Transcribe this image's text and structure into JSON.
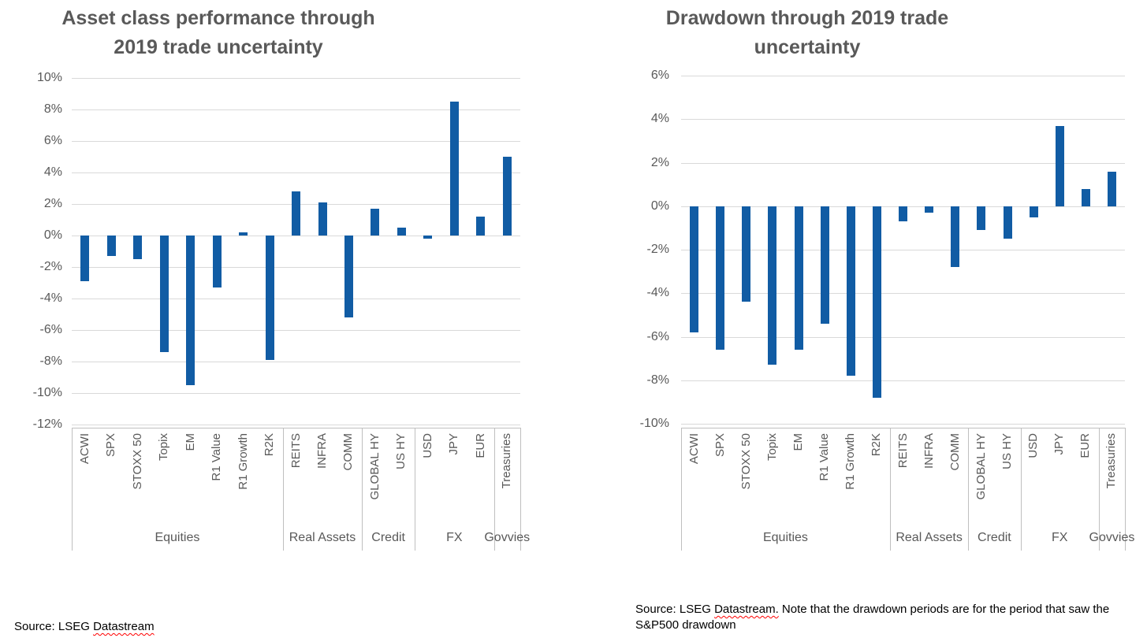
{
  "chart_data": [
    {
      "type": "bar",
      "title": "Asset class performance through 2019 trade uncertainty",
      "title_lines": [
        "Asset class performance through",
        "2019 trade uncertainty"
      ],
      "categories": [
        "ACWI",
        "SPX",
        "STOXX 50",
        "Topix",
        "EM",
        "R1 Value",
        "R1 Growth",
        "R2K",
        "REITS",
        "INFRA",
        "COMM",
        "GLOBAL HY",
        "US HY",
        "USD",
        "JPY",
        "EUR",
        "Treasuries"
      ],
      "values": [
        -2.9,
        -1.3,
        -1.5,
        -7.4,
        -9.5,
        -3.3,
        0.2,
        -7.9,
        2.8,
        2.1,
        -5.2,
        1.7,
        0.5,
        -0.2,
        8.5,
        1.2,
        5.0
      ],
      "group_labels": [
        {
          "label": "Equities",
          "span": 8
        },
        {
          "label": "Real Assets",
          "span": 3
        },
        {
          "label": "Credit",
          "span": 2
        },
        {
          "label": "FX",
          "span": 3
        },
        {
          "label": "Govvies",
          "span": 1
        }
      ],
      "ylim": [
        -12,
        10
      ],
      "ytick_step": 2,
      "ytick_labels": [
        "10%",
        "8%",
        "6%",
        "4%",
        "2%",
        "0%",
        "-2%",
        "-4%",
        "-6%",
        "-8%",
        "-10%",
        "-12%"
      ],
      "ylabel_format": "percent",
      "grid": true,
      "legend": "none",
      "bar_color": "#115CA4"
    },
    {
      "type": "bar",
      "title": "Drawdown through 2019 trade uncertainty",
      "title_lines": [
        "Drawdown through 2019 trade",
        "uncertainty"
      ],
      "categories": [
        "ACWI",
        "SPX",
        "STOXX 50",
        "Topix",
        "EM",
        "R1 Value",
        "R1 Growth",
        "R2K",
        "REITS",
        "INFRA",
        "COMM",
        "GLOBAL HY",
        "US HY",
        "USD",
        "JPY",
        "EUR",
        "Treasuries"
      ],
      "values": [
        -5.8,
        -6.6,
        -4.4,
        -7.3,
        -6.6,
        -5.4,
        -7.8,
        -8.8,
        -0.7,
        -0.3,
        -2.8,
        -1.1,
        -1.5,
        -0.5,
        3.7,
        0.8,
        1.6
      ],
      "group_labels": [
        {
          "label": "Equities",
          "span": 8
        },
        {
          "label": "Real Assets",
          "span": 3
        },
        {
          "label": "Credit",
          "span": 2
        },
        {
          "label": "FX",
          "span": 3
        },
        {
          "label": "Govvies",
          "span": 1
        }
      ],
      "ylim": [
        -10,
        6
      ],
      "ytick_step": 2,
      "ytick_labels": [
        "6%",
        "4%",
        "2%",
        "0%",
        "-2%",
        "-4%",
        "-6%",
        "-8%",
        "-10%"
      ],
      "ylabel_format": "percent",
      "grid": true,
      "legend": "none",
      "bar_color": "#115CA4"
    }
  ],
  "footnotes": [
    {
      "prefix": "Source: LSEG ",
      "word": "Datastream",
      "suffix": ""
    },
    {
      "prefix": "Source: LSEG ",
      "word": "Datastream.",
      "suffix": " Note that the drawdown periods are for the period that saw the S&P500 drawdown"
    }
  ],
  "colors": {
    "bar": "#115CA4",
    "gridline": "#d9d9d9",
    "axis_line": "#bfbfbf",
    "title_text": "#595959",
    "axis_text": "#595959",
    "footnote_text": "#000000",
    "squiggle": "#ff0000"
  }
}
